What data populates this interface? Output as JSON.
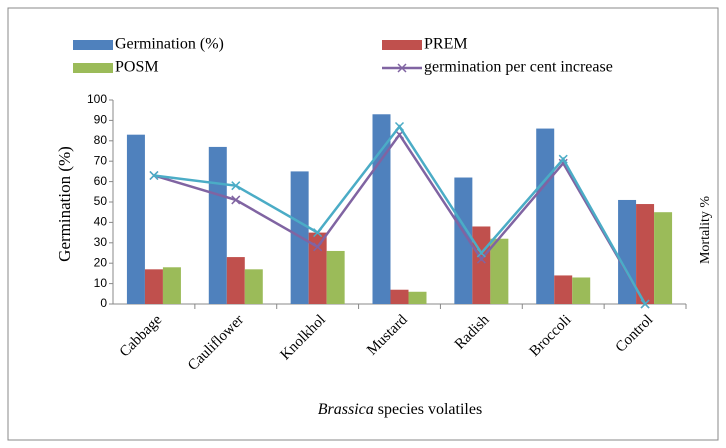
{
  "chart_data": {
    "type": "bar",
    "categories": [
      "Cabbage",
      "Cauliflower",
      "Knolkhol",
      "Mustard",
      "Radish",
      "Broccoli",
      "Control"
    ],
    "series": [
      {
        "name": "Germination (%)",
        "color": "#4f81bd",
        "values": [
          83,
          77,
          65,
          93,
          62,
          86,
          51
        ]
      },
      {
        "name": "PREM",
        "color": "#c0504d",
        "values": [
          17,
          23,
          35,
          7,
          38,
          14,
          49
        ]
      },
      {
        "name": "POSM",
        "color": "#9bbb59",
        "values": [
          18,
          17,
          26,
          6,
          32,
          13,
          45
        ]
      }
    ],
    "lines": [
      {
        "name": "germination per cent increase",
        "color": "#8064a2",
        "values": [
          63,
          51,
          28,
          83,
          22,
          69,
          0
        ]
      },
      {
        "color": "#4bacc6",
        "values": [
          63,
          58,
          35,
          87,
          25,
          71,
          0
        ]
      }
    ],
    "y_label": "Germination (%)",
    "y2_label": "Mortality %",
    "x_label_parts": [
      "Brassica",
      "species volatiles"
    ],
    "ylim": [
      0,
      100
    ],
    "yticks": [
      0,
      10,
      20,
      30,
      40,
      50,
      60,
      70,
      80,
      90,
      100
    ]
  }
}
